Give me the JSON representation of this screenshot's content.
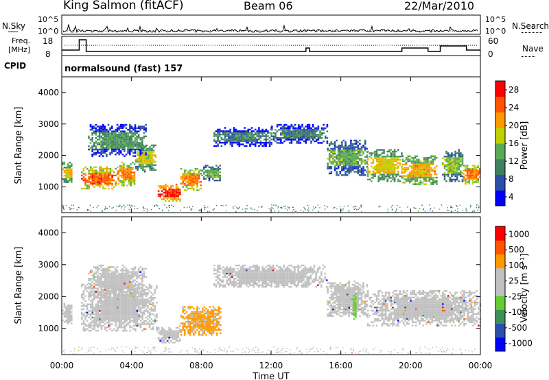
{
  "header": {
    "station": "King Salmon (fitACF)",
    "beam": "Beam 06",
    "date": "22/Mar/2010"
  },
  "top_panel": {
    "left_label": "N.Sky",
    "right_label": "N.Search",
    "tick_high": "10^5",
    "tick_low": "10^0"
  },
  "freq_panel": {
    "left_label_line1": "Freq.",
    "left_label_line2": "[MHz]",
    "right_label": "Nave",
    "left_ticks": [
      "18",
      "8"
    ],
    "right_ticks": [
      "60",
      "0"
    ]
  },
  "cpid": {
    "label": "CPID",
    "value": "normalsound (fast) 157"
  },
  "colors": {
    "power": [
      "#0000ff",
      "#2a4fa8",
      "#3f7f62",
      "#5aaa55",
      "#c0d000",
      "#ff9900",
      "#ff5500",
      "#ff0000"
    ],
    "velocity": [
      "#0000ff",
      "#2a4fa8",
      "#3f8f5a",
      "#66cc33",
      "#c0c0c0",
      "#c0c0c0",
      "#ff9900",
      "#ff5500",
      "#ff0000"
    ],
    "ground_scatter": "#c0c0c0"
  },
  "chart_data": [
    {
      "type": "heatmap",
      "title": "Power",
      "xlabel": "Time UT",
      "ylabel": "Slant Range [km]",
      "x_ticks": [
        "00:00",
        "04:00",
        "08:00",
        "12:00",
        "16:00",
        "20:00",
        "00:00"
      ],
      "y_ticks": [
        "1000",
        "2000",
        "3000",
        "4000"
      ],
      "xlim_hours": [
        0,
        24
      ],
      "ylim_km": [
        180,
        4500
      ],
      "colorbar_label": "Power [dB]",
      "colorbar_ticks": [
        "28",
        "24",
        "20",
        "16",
        "12",
        "8",
        "4"
      ],
      "colorbar_range": [
        0,
        30
      ],
      "regions": [
        {
          "t0": 0.0,
          "t1": 0.6,
          "r0": 1150,
          "r1": 1800,
          "level": 14
        },
        {
          "t0": 1.1,
          "t1": 3.2,
          "r0": 950,
          "r1": 1650,
          "level": 20
        },
        {
          "t0": 3.2,
          "t1": 4.2,
          "r0": 1050,
          "r1": 1800,
          "level": 18
        },
        {
          "t0": 4.2,
          "t1": 5.4,
          "r0": 1500,
          "r1": 2400,
          "level": 13
        },
        {
          "t0": 5.5,
          "t1": 6.8,
          "r0": 550,
          "r1": 1100,
          "level": 23
        },
        {
          "t0": 6.8,
          "t1": 8.0,
          "r0": 900,
          "r1": 1600,
          "level": 18
        },
        {
          "t0": 8.0,
          "t1": 9.1,
          "r0": 1200,
          "r1": 1700,
          "level": 9
        },
        {
          "t0": 1.5,
          "t1": 4.8,
          "r0": 2000,
          "r1": 3000,
          "level": 7
        },
        {
          "t0": 8.7,
          "t1": 12.0,
          "r0": 2300,
          "r1": 2900,
          "level": 5
        },
        {
          "t0": 12.0,
          "t1": 15.2,
          "r0": 2400,
          "r1": 3000,
          "level": 5
        },
        {
          "t0": 15.2,
          "t1": 17.5,
          "r0": 1400,
          "r1": 2500,
          "level": 9
        },
        {
          "t0": 17.5,
          "t1": 19.5,
          "r0": 1200,
          "r1": 2200,
          "level": 14
        },
        {
          "t0": 19.5,
          "t1": 21.5,
          "r0": 1100,
          "r1": 2000,
          "level": 16
        },
        {
          "t0": 21.8,
          "t1": 23.0,
          "r0": 1200,
          "r1": 2200,
          "level": 11
        },
        {
          "t0": 23.0,
          "t1": 24.0,
          "r0": 1100,
          "r1": 1700,
          "level": 19
        }
      ]
    },
    {
      "type": "heatmap",
      "title": "Velocity",
      "xlabel": "Time UT",
      "ylabel": "Slant Range [km]",
      "x_ticks": [
        "00:00",
        "04:00",
        "08:00",
        "12:00",
        "16:00",
        "20:00",
        "00:00"
      ],
      "y_ticks": [
        "1000",
        "2000",
        "3000",
        "4000"
      ],
      "xlim_hours": [
        0,
        24
      ],
      "ylim_km": [
        180,
        4500
      ],
      "colorbar_label": "Velocity [m s⁻¹]",
      "colorbar_ticks": [
        "1000",
        "500",
        "100",
        "25",
        "-25",
        "-100",
        "-500",
        "-1000"
      ],
      "regions": [
        {
          "t0": 0.0,
          "t1": 0.6,
          "r0": 1150,
          "r1": 1800,
          "v": 0
        },
        {
          "t0": 1.1,
          "t1": 5.4,
          "r0": 950,
          "r1": 2400,
          "v": 0
        },
        {
          "t0": 5.5,
          "t1": 6.8,
          "r0": 550,
          "r1": 1100,
          "v": 0
        },
        {
          "t0": 6.8,
          "t1": 9.1,
          "r0": 800,
          "r1": 1700,
          "v": -200
        },
        {
          "t0": 1.5,
          "t1": 4.8,
          "r0": 2000,
          "r1": 3000,
          "v": 0
        },
        {
          "t0": 8.7,
          "t1": 15.2,
          "r0": 2300,
          "r1": 3000,
          "v": 0
        },
        {
          "t0": 15.2,
          "t1": 17.5,
          "r0": 1400,
          "r1": 2500,
          "v": 0
        },
        {
          "t0": 16.6,
          "t1": 16.9,
          "r0": 1300,
          "r1": 2100,
          "v": 150
        },
        {
          "t0": 17.5,
          "t1": 24.0,
          "r0": 1100,
          "r1": 2200,
          "v": 0
        }
      ]
    }
  ]
}
